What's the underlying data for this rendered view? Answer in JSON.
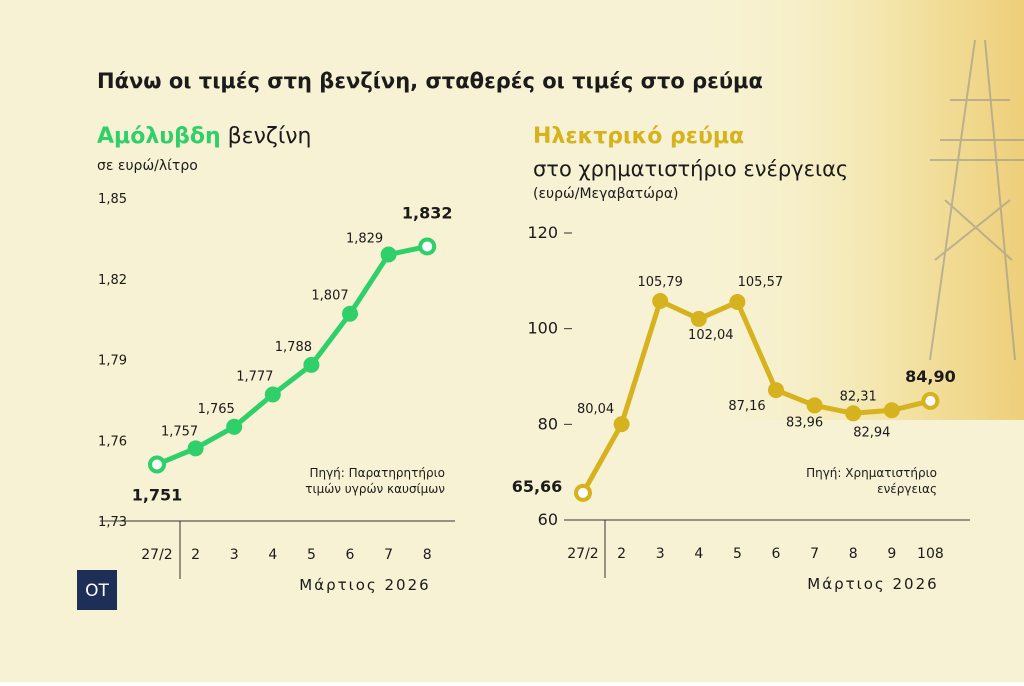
{
  "title": "Πάνω οι τιμές στη βενζίνη, σταθερές οι τιμές στο ρεύμα",
  "logo": "OT",
  "chart_data": [
    {
      "type": "line",
      "title": [
        "Αμόλυβδη",
        "βενζίνη"
      ],
      "subtitle": "σε ευρώ/λίτρο",
      "xlabel": "Μάρτιος 2026",
      "source": [
        "Πηγή: Παρατηρητήριο",
        "τιμών υγρών καυσίμων"
      ],
      "categories": [
        "27/2",
        "2",
        "3",
        "4",
        "5",
        "6",
        "7",
        "8"
      ],
      "values": [
        1.751,
        1.757,
        1.765,
        1.777,
        1.788,
        1.807,
        1.829,
        1.832
      ],
      "value_labels": [
        "1,751",
        "1,757",
        "1,765",
        "1,777",
        "1,788",
        "1,807",
        "1,829",
        "1,832"
      ],
      "color": "#2fcf6a",
      "ylim": [
        1.73,
        1.85
      ],
      "yticks": [
        {
          "value": 1.73,
          "label": "1,73"
        },
        {
          "value": 1.76,
          "label": "1,76"
        },
        {
          "value": 1.79,
          "label": "1,79"
        },
        {
          "value": 1.82,
          "label": "1,82"
        },
        {
          "value": 1.85,
          "label": "1,85"
        }
      ],
      "tick_marks": false
    },
    {
      "type": "line",
      "title": [
        "Ηλεκτρικό ρεύμα"
      ],
      "subtitle": "στο χρηματιστήριο ενέργειας",
      "subtitle2": "(ευρώ/Μεγαβατώρα)",
      "xlabel": "Μάρτιος 2026",
      "source": [
        "Πηγή: Χρηματιστήριο",
        "ενέργειας"
      ],
      "categories": [
        "27/2",
        "2",
        "3",
        "4",
        "5",
        "6",
        "7",
        "8",
        "9",
        "108"
      ],
      "values": [
        65.66,
        80.04,
        105.79,
        102.04,
        105.57,
        87.16,
        83.96,
        82.31,
        82.94,
        84.9
      ],
      "value_labels": [
        "65,66",
        "80,04",
        "105,79",
        "102,04",
        "105,57",
        "87,16",
        "83,96",
        "82,31",
        "82,94",
        "84,90"
      ],
      "color": "#d6b21e",
      "ylim": [
        60,
        120
      ],
      "yticks": [
        60,
        80,
        100,
        120
      ],
      "tick_marks": true
    }
  ]
}
